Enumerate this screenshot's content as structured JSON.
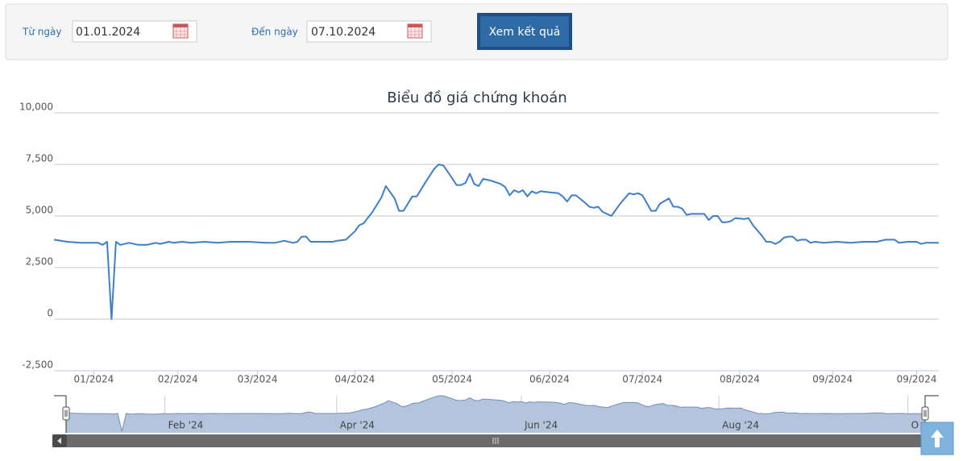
{
  "form": {
    "from_label": "Từ ngày",
    "from_value": "01.01.2024",
    "to_label": "Đến ngày",
    "to_value": "07.10.2024",
    "button": "Xem kết quả"
  },
  "chart_data": {
    "type": "line",
    "title": "Biểu đồ giá chứng khoán",
    "color": "#3d7fc9",
    "x": [
      0,
      3,
      6,
      10,
      11,
      12,
      13,
      14,
      15,
      17,
      19,
      21,
      23,
      24,
      26,
      27,
      29,
      31,
      34,
      37,
      40,
      44,
      48,
      50,
      52,
      54,
      55,
      56,
      57,
      58,
      63,
      64,
      66,
      68,
      69,
      70,
      72,
      74,
      75,
      77,
      78,
      79,
      81,
      82,
      84,
      86,
      87,
      88,
      89,
      91,
      92,
      93,
      94,
      95,
      96,
      97,
      99,
      101,
      102,
      103,
      104,
      105,
      106,
      107,
      108,
      109,
      110,
      112,
      114,
      115,
      116,
      117,
      118,
      120,
      121,
      122,
      123,
      124,
      126,
      128,
      130,
      131,
      132,
      133,
      135,
      136,
      137,
      139,
      140,
      141,
      142,
      143,
      144,
      147,
      148,
      149,
      150,
      151,
      152,
      153,
      154,
      156,
      157,
      158,
      160,
      161,
      162,
      163,
      164,
      165,
      166,
      167,
      168,
      169,
      170,
      171,
      172,
      174,
      177,
      180,
      183,
      186,
      188,
      190,
      191,
      193,
      195,
      196,
      197,
      200
    ],
    "values": [
      3850,
      3750,
      3700,
      3700,
      3600,
      3750,
      0,
      3750,
      3600,
      3700,
      3600,
      3600,
      3700,
      3650,
      3750,
      3700,
      3750,
      3700,
      3750,
      3700,
      3750,
      3750,
      3700,
      3700,
      3800,
      3700,
      3750,
      4000,
      4000,
      3750,
      3750,
      3800,
      3850,
      4250,
      4550,
      4650,
      5200,
      5900,
      6450,
      5850,
      5250,
      5250,
      5950,
      5950,
      6650,
      7300,
      7500,
      7450,
      7150,
      6500,
      6500,
      6600,
      7050,
      6550,
      6450,
      6800,
      6700,
      6550,
      6400,
      6000,
      6250,
      6150,
      6250,
      5950,
      6200,
      6100,
      6200,
      6150,
      6100,
      5950,
      5700,
      6000,
      6000,
      5650,
      5450,
      5400,
      5450,
      5200,
      5000,
      5600,
      6100,
      6050,
      6100,
      6000,
      5250,
      5250,
      5600,
      5850,
      5450,
      5450,
      5350,
      5050,
      5100,
      5100,
      4800,
      5000,
      5000,
      4700,
      4700,
      4750,
      4900,
      4850,
      4900,
      4550,
      4050,
      3750,
      3750,
      3650,
      3750,
      3950,
      4000,
      4000,
      3800,
      3850,
      3850,
      3700,
      3750,
      3700,
      3750,
      3700,
      3750,
      3750,
      3850,
      3850,
      3700,
      3750,
      3750,
      3650,
      3700,
      3700
    ],
    "xlim": [
      0,
      200
    ],
    "xticks": [
      {
        "value": 9,
        "label": "01/2024"
      },
      {
        "value": 28,
        "label": "02/2024"
      },
      {
        "value": 46,
        "label": "03/2024"
      },
      {
        "value": 68,
        "label": "04/2024"
      },
      {
        "value": 90,
        "label": "05/2024"
      },
      {
        "value": 112,
        "label": "06/2024"
      },
      {
        "value": 133,
        "label": "07/2024"
      },
      {
        "value": 155,
        "label": "08/2024"
      },
      {
        "value": 176,
        "label": "09/2024"
      },
      {
        "value": 195,
        "label": "09/2024"
      }
    ],
    "ylim": [
      -2500,
      10000
    ],
    "yticks": [
      {
        "value": -2500,
        "label": "-2,500"
      },
      0,
      {
        "value": 2500,
        "label": "2,500"
      },
      {
        "value": 5000,
        "label": "5,000"
      },
      {
        "value": 7500,
        "label": "7,500"
      },
      {
        "value": 10000,
        "label": "10,000"
      }
    ],
    "grid": true,
    "navigator_xticks": [
      {
        "value": 23,
        "label": "Feb '24"
      },
      {
        "value": 63,
        "label": "Apr '24"
      },
      {
        "value": 106,
        "label": "Jun '24"
      },
      {
        "value": 152,
        "label": "Aug '24"
      },
      {
        "value": 196,
        "label": "O"
      }
    ]
  }
}
